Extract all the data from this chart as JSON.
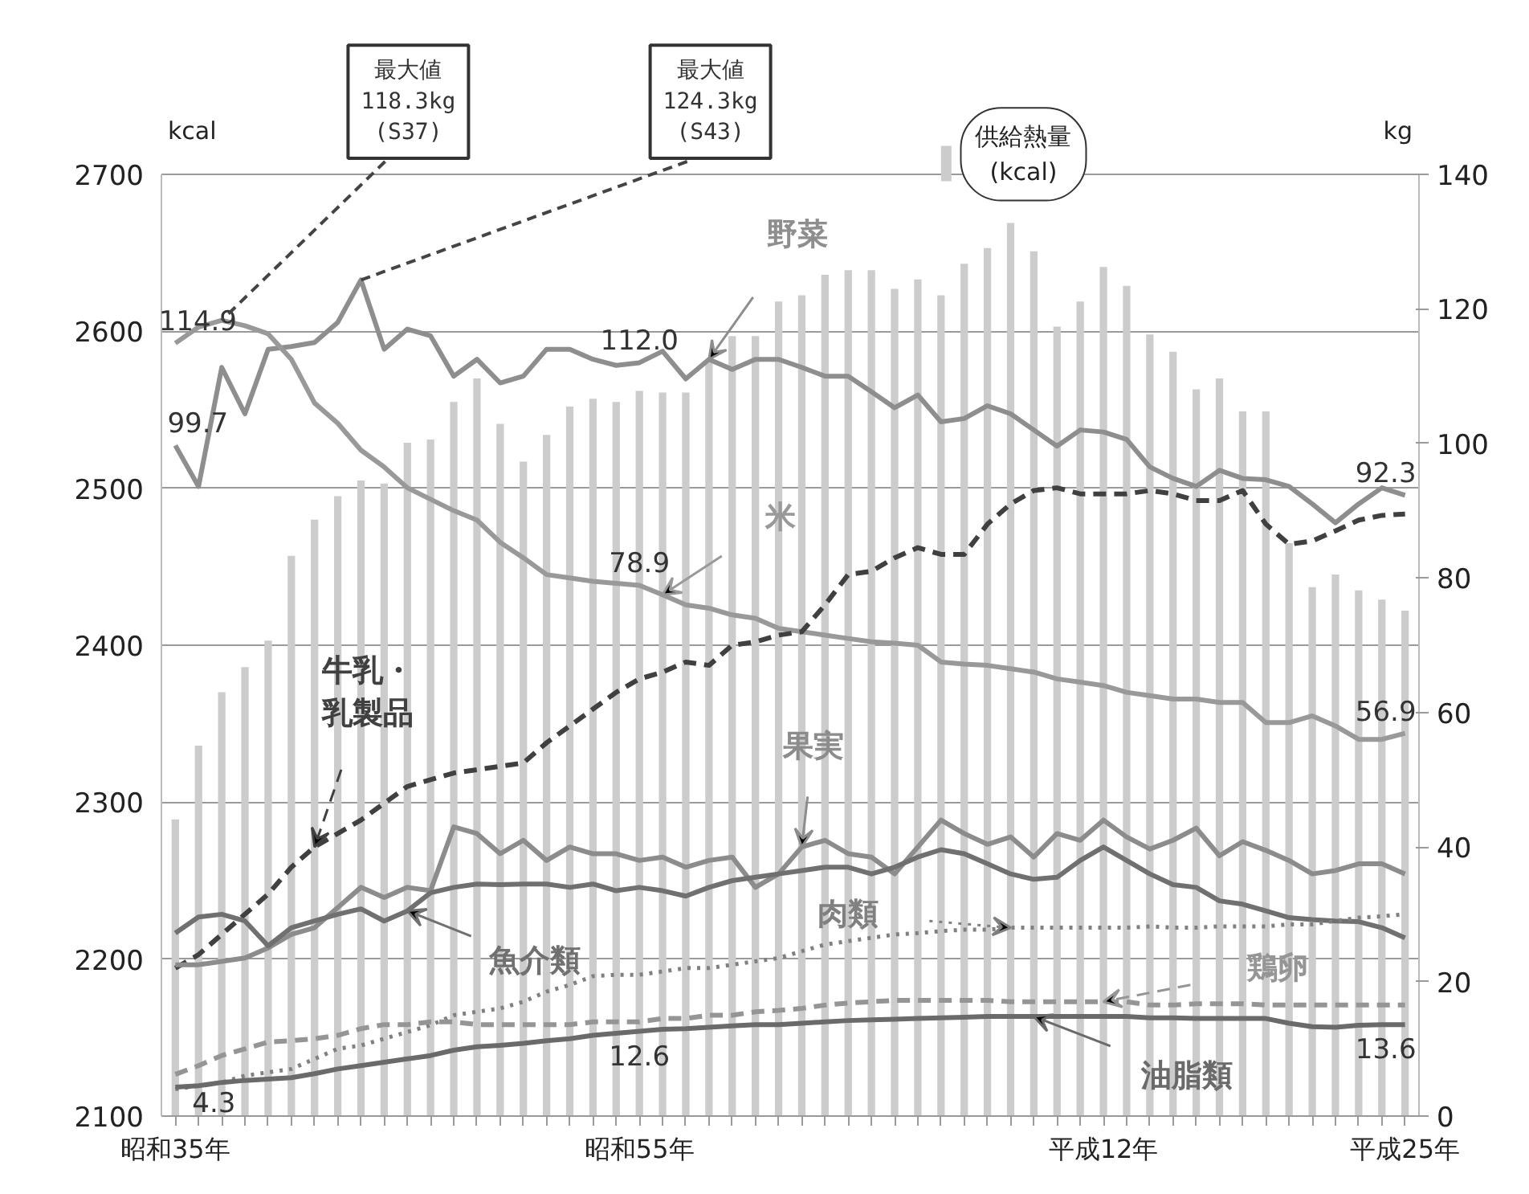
{
  "chart_data": {
    "type": "bar",
    "ylabel": "kcal",
    "y2label": "kg",
    "categories": [
      "昭和35年",
      null,
      null,
      null,
      null,
      null,
      null,
      null,
      null,
      null,
      null,
      null,
      null,
      null,
      null,
      null,
      null,
      null,
      null,
      null,
      "昭和55年",
      null,
      null,
      null,
      null,
      null,
      null,
      null,
      null,
      null,
      null,
      null,
      null,
      null,
      null,
      null,
      null,
      null,
      null,
      null,
      "平成12年",
      null,
      null,
      null,
      null,
      null,
      null,
      null,
      null,
      null,
      null,
      null,
      null,
      "平成25年"
    ],
    "ylim": [
      2100,
      2700
    ],
    "yticks": [
      2100,
      2200,
      2300,
      2400,
      2500,
      2600,
      2700
    ],
    "y2lim": [
      0,
      140
    ],
    "y2ticks": [
      0,
      20,
      40,
      60,
      80,
      100,
      120,
      140
    ],
    "grid": "y",
    "series": [
      {
        "name": "供給熱量(kcal)",
        "color": "#cccccc",
        "values": [
          2289,
          2336,
          2370,
          2386,
          2403,
          2457,
          2480,
          2495,
          2505,
          2503,
          2529,
          2531,
          2555,
          2570,
          2541,
          2517,
          2534,
          2552,
          2557,
          2555,
          2562,
          2561,
          2561,
          2582,
          2597,
          2597,
          2619,
          2623,
          2636,
          2639,
          2639,
          2627,
          2633,
          2623,
          2643,
          2653,
          2669,
          2651,
          2603,
          2619,
          2641,
          2629,
          2598,
          2587,
          2563,
          2570,
          2549,
          2549,
          2465,
          2437,
          2445,
          2435,
          2429,
          2422
        ]
      },
      {
        "name": "野菜",
        "type": "line",
        "axis": "y2",
        "color": "#8e8e8e",
        "line_style": "solid",
        "values": [
          99.7,
          93.6,
          111.3,
          104.4,
          114,
          114.4,
          115,
          118,
          124.3,
          114,
          117,
          116,
          110,
          112.5,
          109,
          110,
          114,
          114,
          112.5,
          111.6,
          112.0,
          113.7,
          109.6,
          112.5,
          111,
          112.5,
          112.5,
          111.3,
          110,
          110,
          107.7,
          105.3,
          107.2,
          103.2,
          103.7,
          105.6,
          104.4,
          102,
          99.6,
          102,
          101.7,
          100.6,
          96.5,
          94.8,
          93.6,
          96,
          94.8,
          94.6,
          93.6,
          91,
          88.2,
          91,
          93.4,
          92.3
        ],
        "value_labels": [
          "99.7",
          null,
          null,
          null,
          null,
          null,
          null,
          null,
          "最大値\n124.3kg\n(S43)",
          null,
          null,
          null,
          null,
          null,
          null,
          null,
          null,
          null,
          null,
          null,
          "112.0",
          null,
          null,
          null,
          null,
          null,
          null,
          null,
          null,
          null,
          null,
          null,
          null,
          null,
          null,
          null,
          null,
          null,
          null,
          null,
          null,
          null,
          null,
          null,
          null,
          null,
          null,
          null,
          null,
          null,
          null,
          null,
          null,
          "92.3"
        ]
      },
      {
        "name": "米",
        "type": "line",
        "axis": "y2",
        "color": "#999999",
        "line_style": "solid",
        "values": [
          114.9,
          117.3,
          118.3,
          117.5,
          116.3,
          112.5,
          106,
          103,
          99,
          96.5,
          93.4,
          91.7,
          90,
          88.6,
          85.3,
          83,
          80.5,
          80,
          79.5,
          79.2,
          78.9,
          77.5,
          76,
          75.5,
          74.5,
          74,
          72.5,
          72,
          71.5,
          71,
          70.5,
          70.3,
          70,
          67.5,
          67.2,
          67,
          66.5,
          66,
          65,
          64.5,
          64,
          63,
          62.5,
          62,
          62,
          61.5,
          61.5,
          58.5,
          58.5,
          59.5,
          58,
          56,
          56,
          56.9
        ],
        "value_labels": [
          "114.9",
          null,
          "最大値\n118.3kg\n(S37)",
          null,
          null,
          null,
          null,
          null,
          null,
          null,
          null,
          null,
          null,
          null,
          null,
          null,
          null,
          null,
          null,
          null,
          "78.9",
          null,
          null,
          null,
          null,
          null,
          null,
          null,
          null,
          null,
          null,
          null,
          null,
          null,
          null,
          null,
          null,
          null,
          null,
          null,
          null,
          null,
          null,
          null,
          null,
          null,
          null,
          null,
          null,
          null,
          null,
          null,
          null,
          "56.9"
        ]
      },
      {
        "name": "牛乳・乳製品",
        "type": "line",
        "axis": "y2",
        "color": "#404040",
        "line_style": "dashed",
        "values": [
          22,
          24,
          27,
          30,
          33,
          37,
          40,
          42,
          44,
          46.5,
          49,
          50,
          51,
          51.5,
          52,
          52.5,
          55.5,
          58,
          60.5,
          63,
          65,
          66,
          67.5,
          67,
          70,
          70.5,
          71.5,
          72,
          76,
          80.5,
          81,
          83,
          84.5,
          83.5,
          83.5,
          88,
          91,
          93,
          93.4,
          92.5,
          92.5,
          92.5,
          93,
          92.5,
          91.5,
          91.5,
          93,
          88,
          85,
          85.5,
          87,
          88.6,
          89.3,
          89.5
        ]
      },
      {
        "name": "果実",
        "type": "line",
        "axis": "y2",
        "color": "#8c8c8c",
        "line_style": "solid",
        "values": [
          22.5,
          22.5,
          23,
          23.5,
          25,
          27,
          28,
          31,
          34,
          32.5,
          34,
          33.5,
          43,
          42,
          39,
          41,
          38,
          40,
          39,
          39,
          38,
          38.5,
          37,
          38,
          38.5,
          34,
          36,
          40,
          41,
          39,
          38.5,
          36,
          40,
          44,
          42,
          40.4,
          41.5,
          38.5,
          42,
          41,
          44,
          41.5,
          39.7,
          41,
          42.8,
          38.7,
          40.8,
          39.5,
          38,
          36,
          36.5,
          37.5,
          37.5,
          36
        ]
      },
      {
        "name": "魚介類",
        "type": "line",
        "axis": "y2",
        "color": "#707070",
        "line_style": "solid",
        "values": [
          27.2,
          29.6,
          30,
          29,
          25.3,
          28,
          29,
          30,
          30.8,
          29,
          30.5,
          33.2,
          34,
          34.5,
          34.4,
          34.5,
          34.5,
          34,
          34.5,
          33.5,
          34,
          33.5,
          32.7,
          34,
          35,
          35.5,
          36,
          36.5,
          37,
          37,
          36,
          37,
          38.5,
          39.6,
          39,
          37.5,
          36,
          35.2,
          35.5,
          38,
          40,
          38,
          36,
          34.4,
          34,
          32,
          31.5,
          30.5,
          29.5,
          29.2,
          29,
          28.9,
          28,
          26.5
        ]
      },
      {
        "name": "肉類",
        "type": "line",
        "axis": "y2",
        "color": "#808080",
        "line_style": "dotted",
        "values": [
          4,
          4.5,
          5,
          6,
          6.5,
          7,
          8.5,
          10,
          10.5,
          11.5,
          12.5,
          13.5,
          15,
          15.5,
          16,
          17,
          18.5,
          19.5,
          20.8,
          21,
          21,
          21.5,
          22,
          22,
          22.5,
          23,
          23.5,
          24.5,
          25.5,
          26,
          26.5,
          27,
          27.2,
          27.5,
          27.7,
          27.7,
          28,
          28,
          28,
          28,
          28,
          28,
          28.2,
          28,
          28,
          28.2,
          28.2,
          28.2,
          28.5,
          28.5,
          29,
          29.5,
          29.7,
          30
        ]
      },
      {
        "name": "鶏卵",
        "type": "line",
        "axis": "y2",
        "color": "#959595",
        "line_style": "dashed",
        "values": [
          6.2,
          7.5,
          9,
          10,
          11,
          11.2,
          11.5,
          12,
          13,
          13.6,
          13.6,
          14,
          14,
          13.6,
          13.6,
          13.6,
          13.6,
          13.6,
          14,
          14,
          14,
          14.5,
          14.5,
          15,
          15,
          15.5,
          15.7,
          16,
          16.5,
          16.8,
          17,
          17.2,
          17.2,
          17.2,
          17.2,
          17.2,
          17,
          17,
          17,
          17,
          17,
          17,
          16.5,
          16.5,
          16.7,
          16.7,
          16.7,
          16.5,
          16.5,
          16.5,
          16.5,
          16.5,
          16.5,
          16.5
        ]
      },
      {
        "name": "油脂類",
        "type": "line",
        "axis": "y2",
        "color": "#6a6a6a",
        "line_style": "solid",
        "values": [
          4.3,
          4.5,
          5,
          5.3,
          5.5,
          5.7,
          6.3,
          7,
          7.5,
          8,
          8.5,
          9,
          9.8,
          10.3,
          10.5,
          10.8,
          11.2,
          11.5,
          12,
          12.3,
          12.6,
          12.9,
          13,
          13.2,
          13.4,
          13.6,
          13.6,
          13.8,
          14,
          14.2,
          14.3,
          14.4,
          14.5,
          14.6,
          14.7,
          14.8,
          14.8,
          14.8,
          14.8,
          14.8,
          14.8,
          14.8,
          14.6,
          14.6,
          14.5,
          14.5,
          14.5,
          14.5,
          13.8,
          13.3,
          13.2,
          13.5,
          13.6,
          13.6
        ],
        "value_labels": [
          "4.3",
          null,
          null,
          null,
          null,
          null,
          null,
          null,
          null,
          null,
          null,
          null,
          null,
          null,
          null,
          null,
          null,
          null,
          null,
          null,
          "12.6",
          null,
          null,
          null,
          null,
          null,
          null,
          null,
          null,
          null,
          null,
          null,
          null,
          null,
          null,
          null,
          null,
          null,
          null,
          null,
          null,
          null,
          null,
          null,
          null,
          null,
          null,
          null,
          null,
          null,
          null,
          null,
          null,
          "13.6"
        ]
      }
    ]
  }
}
